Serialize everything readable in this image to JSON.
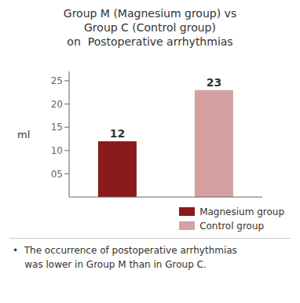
{
  "chart_data": {
    "type": "bar",
    "title": "Group M (Magnesium group) vs\nGroup C (Control group)\non  Postoperative arrhythmias",
    "categories": [
      "Magnesium group",
      "Control group"
    ],
    "values": [
      12,
      23
    ],
    "colors": [
      "#8B1A1A",
      "#D4A0A0"
    ],
    "ylabel": "ml",
    "ylim": [
      0,
      27
    ],
    "yticks": [
      {
        "value": 5,
        "label": "05"
      },
      {
        "value": 10,
        "label": "10"
      },
      {
        "value": 15,
        "label": "15"
      },
      {
        "value": 20,
        "label": "20"
      },
      {
        "value": 25,
        "label": "25"
      }
    ],
    "data_labels": true,
    "tick_labels": "y",
    "legend": "lower right",
    "grid": false,
    "annotations": [
      "•  The occurrence of postoperative arrhythmias",
      "    was lower in Group M than in Group C."
    ]
  }
}
